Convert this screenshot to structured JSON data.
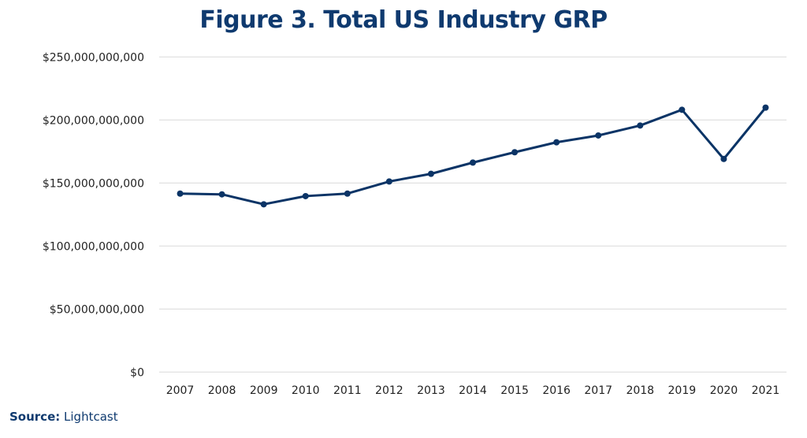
{
  "chart_data": {
    "type": "line",
    "title": "Figure 3. Total US Industry GRP",
    "xlabel": "",
    "ylabel": "",
    "categories": [
      "2007",
      "2008",
      "2009",
      "2010",
      "2011",
      "2012",
      "2013",
      "2014",
      "2015",
      "2016",
      "2017",
      "2018",
      "2019",
      "2020",
      "2021"
    ],
    "values": [
      141600000000,
      141000000000,
      133100000000,
      139600000000,
      141600000000,
      151200000000,
      157300000000,
      166200000000,
      174400000000,
      182300000000,
      187700000000,
      195600000000,
      208100000000,
      169100000000,
      209800000000
    ],
    "ylim": [
      0,
      250000000000
    ],
    "yticks": [
      0,
      50000000000,
      100000000000,
      150000000000,
      200000000000,
      250000000000
    ],
    "ytick_labels": [
      "$0",
      "$50,000,000,000",
      "$100,000,000,000",
      "$150,000,000,000",
      "$200,000,000,000",
      "$250,000,000,000"
    ],
    "grid": true,
    "markers": true,
    "line_color": "#0b3466",
    "grid_color": "#d9d9d9"
  },
  "source": {
    "label": "Source:",
    "value": "Lightcast"
  }
}
